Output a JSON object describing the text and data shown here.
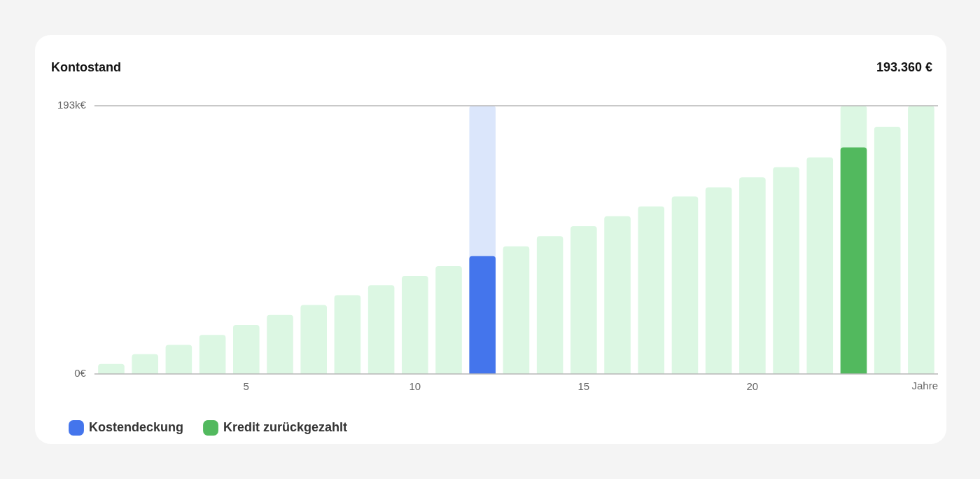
{
  "chart_data": {
    "type": "bar",
    "title": "Kontostand",
    "subtitle": "193.360 €",
    "xlabel": "Jahre",
    "categories": [
      null,
      null,
      null,
      null,
      "5",
      null,
      null,
      null,
      null,
      "10",
      null,
      null,
      null,
      null,
      "15",
      null,
      null,
      null,
      null,
      "20",
      null,
      null,
      null,
      null,
      null
    ],
    "series": [
      {
        "color": "#dcf7e3",
        "values": [
          7200,
          14300,
          21000,
          28200,
          35300,
          42500,
          49700,
          56800,
          64000,
          70700,
          77800,
          null,
          92000,
          99300,
          106500,
          113700,
          120800,
          128000,
          134600,
          141800,
          149000,
          156100,
          null,
          178200,
          193360
        ]
      },
      {
        "name": "Kostendeckung",
        "color": "#4475ec",
        "values": [
          null,
          null,
          null,
          null,
          null,
          null,
          null,
          null,
          null,
          null,
          null,
          85000,
          null,
          null,
          null,
          null,
          null,
          null,
          null,
          null,
          null,
          null,
          null,
          null,
          null
        ]
      },
      {
        "name": "Kredit zurückgezahlt",
        "color": "#52b95e",
        "values": [
          null,
          null,
          null,
          null,
          null,
          null,
          null,
          null,
          null,
          null,
          null,
          null,
          null,
          null,
          null,
          null,
          null,
          null,
          null,
          null,
          null,
          null,
          163300,
          null,
          null
        ]
      },
      {
        "colors": [
          "#dcf7e3",
          "#dcf7e3",
          "#dcf7e3",
          "#dcf7e3",
          "#dcf7e3",
          "#dcf7e3",
          "#dcf7e3",
          "#dcf7e3",
          "#dcf7e3",
          "#dcf7e3",
          "#dcf7e3",
          "#dbe6fb",
          "#dcf7e3",
          "#dcf7e3",
          "#dcf7e3",
          "#dcf7e3",
          "#dcf7e3",
          "#dcf7e3",
          "#dcf7e3",
          "#dcf7e3",
          "#dcf7e3",
          "#dcf7e3",
          "#dcf7e3",
          "#dcf7e3",
          "#dcf7e3"
        ],
        "values": [
          null,
          null,
          null,
          null,
          null,
          null,
          null,
          null,
          null,
          null,
          null,
          193360,
          null,
          null,
          null,
          null,
          null,
          null,
          null,
          null,
          null,
          null,
          193360,
          null,
          null
        ]
      }
    ],
    "ylim": [
      0,
      193360
    ],
    "yticks": [
      {
        "value": 0,
        "label": "0€"
      },
      {
        "value": 193360,
        "label": "193k€"
      }
    ],
    "grid": false,
    "legend": "bottom left"
  }
}
